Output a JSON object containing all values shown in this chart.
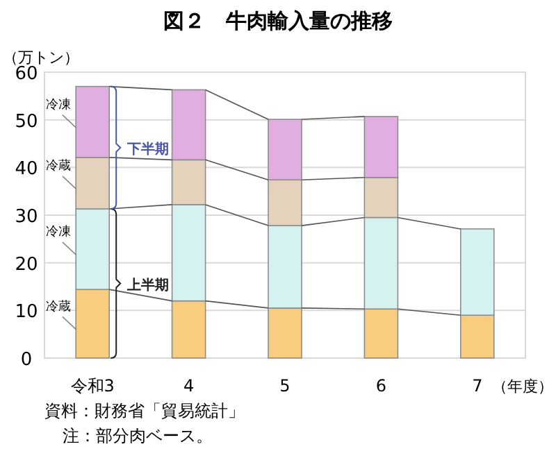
{
  "chart_data": {
    "type": "bar",
    "title": "図２　牛肉輸入量の推移",
    "ylabel": "（万トン）",
    "xlabel": "（年度）",
    "categories": [
      "令和3",
      "4",
      "5",
      "6",
      "7"
    ],
    "stacked": true,
    "series": [
      {
        "name": "冷蔵",
        "color": "#f9cd80",
        "values": [
          14.4,
          12.0,
          10.5,
          10.3,
          9.0
        ]
      },
      {
        "name": "冷凍",
        "color": "#d6f2f0",
        "values": [
          16.9,
          20.2,
          17.3,
          19.2,
          18.1
        ]
      },
      {
        "name": "冷蔵",
        "color": "#e5d2bd",
        "values": [
          10.8,
          9.4,
          9.6,
          8.4,
          null
        ]
      },
      {
        "name": "冷凍",
        "color": "#e2aee2",
        "values": [
          14.9,
          14.7,
          12.7,
          12.8,
          null
        ]
      }
    ],
    "ylim": [
      0,
      60
    ],
    "yticks": [
      0,
      10,
      20,
      30,
      40,
      50,
      60
    ],
    "grid": "y",
    "annotations": [
      "上半期",
      "下半期",
      "資料：財務省「貿易統計」",
      "注：部分肉ベース。"
    ]
  }
}
